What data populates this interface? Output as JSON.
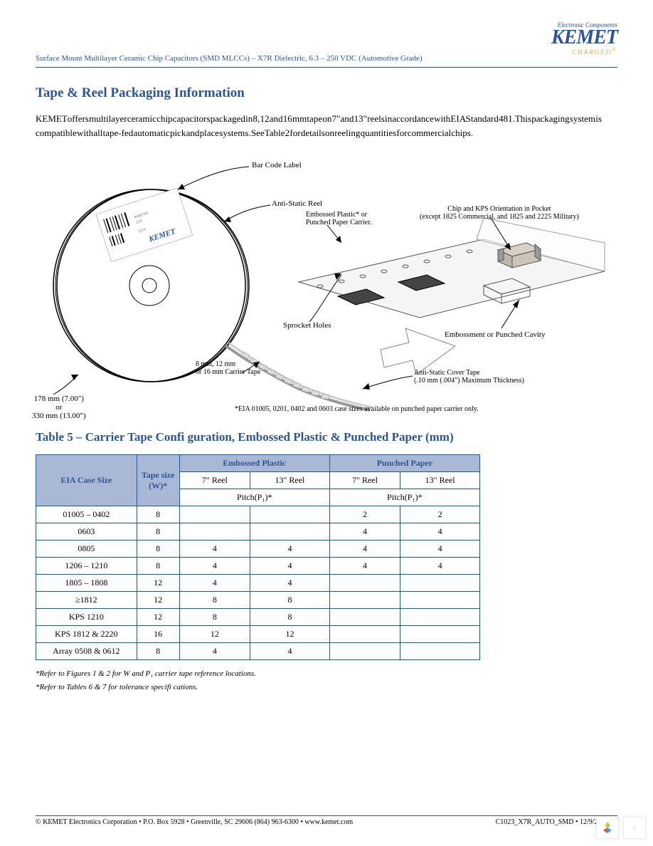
{
  "header": {
    "doc_line": "Surface Mount Multilayer Ceramic Chip Capacitors (SMD MLCCs) – X7R Dielectric, 6.3 – 250 VDC (Automotive Grade)",
    "logo_tagline": "Electronic Components",
    "logo_name": "KEMET",
    "logo_sub": "CHARGED"
  },
  "section": {
    "title": "Tape & Reel Packaging Information",
    "intro": "KEMET offers multilayer ceramic chip capacitors packaged in 8, 12 and 16 mm tape on 7\" and 13\" reels in accordance with EIA Standard 481. This packaging system is compatible with all tape-fed automatic pick and place systems. See Table 2 for details on reeling quantities for commercial chips."
  },
  "diagram": {
    "bar_code": "Bar Code Label",
    "anti_static_reel": "Anti-Static Reel",
    "embossed_carrier": "Embossed Plastic* or\nPunched Paper Carrier.",
    "chip_orient": "Chip and KPS Orientation in Pocket\n(except 1825 Commercial, and 1825 and 2225 Military)",
    "sprocket": "Sprocket Holes",
    "carrier_tape": "8 mm, 12 mm\nor 16 mm Carrier Tape",
    "cover_tape": "Anti-Static Cover Tape\n(.10 mm (.004\") Maximum Thickness)",
    "embossment": "Embossment or Punched Cavity",
    "reel_dims": "178 mm (7.00\")\nor\n330 mm (13.00\")",
    "eia_note": "*EIA 01005, 0201, 0402 and 0603 case sizes available on punched paper carrier only."
  },
  "table": {
    "title": "Table 5 – Carrier Tape Confi guration, Embossed Plastic & Punched Paper (mm)",
    "col_case": "EIA Case Size",
    "col_tape": "Tape size (W)*",
    "group_emb": "Embossed Plastic",
    "group_pun": "Punched Paper",
    "reel7": "7\" Reel",
    "reel13": "13\" Reel",
    "pitch": "Pitch(P₁)*",
    "rows": [
      {
        "case": "01005 – 0402",
        "w": "8",
        "e7": "",
        "e13": "",
        "p7": "2",
        "p13": "2"
      },
      {
        "case": "0603",
        "w": "8",
        "e7": "",
        "e13": "",
        "p7": "4",
        "p13": "4"
      },
      {
        "case": "0805",
        "w": "8",
        "e7": "4",
        "e13": "4",
        "p7": "4",
        "p13": "4"
      },
      {
        "case": "1206 – 1210",
        "w": "8",
        "e7": "4",
        "e13": "4",
        "p7": "4",
        "p13": "4"
      },
      {
        "case": "1805 – 1808",
        "w": "12",
        "e7": "4",
        "e13": "4",
        "p7": "",
        "p13": ""
      },
      {
        "case": "≥1812",
        "w": "12",
        "e7": "8",
        "e13": "8",
        "p7": "",
        "p13": ""
      },
      {
        "case": "KPS 1210",
        "w": "12",
        "e7": "8",
        "e13": "8",
        "p7": "",
        "p13": ""
      },
      {
        "case": "KPS 1812 & 2220",
        "w": "16",
        "e7": "12",
        "e13": "12",
        "p7": "",
        "p13": ""
      },
      {
        "case": "Array 0508 & 0612",
        "w": "8",
        "e7": "4",
        "e13": "4",
        "p7": "",
        "p13": ""
      }
    ]
  },
  "footnotes": {
    "n1": "*Refer to Figures 1 & 2 for W and P₁ carrier tape reference locations.",
    "n2": "*Refer to Tables 6 & 7 for tolerance specifi cations."
  },
  "footer": {
    "left": "© KEMET Electronics Corporation • P.O. Box 5928 • Greenville, SC 29606 (864) 963-6300 • www.kemet.com",
    "right": "C1023_X7R_AUTO_SMD • 12/9/2014 16"
  },
  "colors": {
    "accent": "#2a5599",
    "th_bg": "#a9b8d4",
    "gold": "#e8a33d"
  }
}
